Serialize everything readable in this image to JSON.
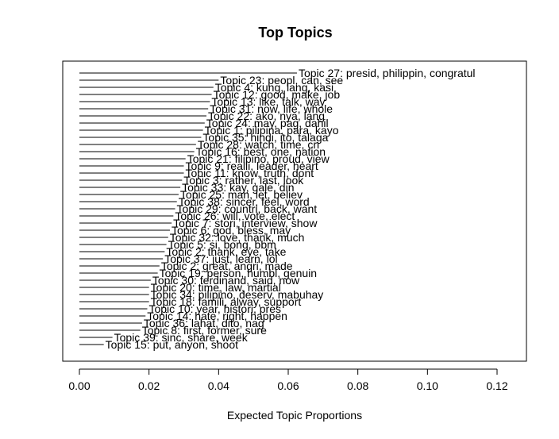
{
  "chart_data": {
    "type": "bar",
    "orientation": "horizontal",
    "title": "Top Topics",
    "xlabel": "Expected Topic Proportions",
    "xlim": [
      0,
      0.13
    ],
    "xticks": [
      0.0,
      0.02,
      0.04,
      0.06,
      0.08,
      0.1,
      0.12
    ],
    "xtick_labels": [
      "0.00",
      "0.02",
      "0.04",
      "0.06",
      "0.08",
      "0.10",
      "0.12"
    ],
    "grid": false,
    "legend": "none",
    "bars": [
      {
        "label": "Topic 27: presid, philippin, congratul",
        "value": 0.0625
      },
      {
        "label": "Topic 23: peopl, can, see",
        "value": 0.04
      },
      {
        "label": "Topic 4: kung, lang, kasi",
        "value": 0.0385
      },
      {
        "label": "Topic 12: good, make, job",
        "value": 0.038
      },
      {
        "label": "Topic 13: like, talk, way",
        "value": 0.0375
      },
      {
        "label": "Topic 31: now, life, whole",
        "value": 0.037
      },
      {
        "label": "Topic 22: ako, nya, lang",
        "value": 0.0365
      },
      {
        "label": "Topic 24: may, pag, dahil",
        "value": 0.036
      },
      {
        "label": "Topic 1: pilipina, para, kayo",
        "value": 0.0355
      },
      {
        "label": "Topic 35: hindi, ito, talaga",
        "value": 0.035
      },
      {
        "label": "Topic 28: watch, time, cri",
        "value": 0.0335
      },
      {
        "label": "Topic 16: best, one, nation",
        "value": 0.033
      },
      {
        "label": "Topic 21: filipino, proud, view",
        "value": 0.0305
      },
      {
        "label": "Topic 9: realli, leader, heart",
        "value": 0.03
      },
      {
        "label": "Topic 11: know, truth, dont",
        "value": 0.03
      },
      {
        "label": "Topic 3: rather, last, look",
        "value": 0.0295
      },
      {
        "label": "Topic 33: kay, gale, din",
        "value": 0.029
      },
      {
        "label": "Topic 25: man, let, believ",
        "value": 0.0285
      },
      {
        "label": "Topic 38: sincer, feel, word",
        "value": 0.028
      },
      {
        "label": "Topic 29: countri, back, want",
        "value": 0.0275
      },
      {
        "label": "Topic 26: will, vote, elect",
        "value": 0.027
      },
      {
        "label": "Topic 7: stori, interview, show",
        "value": 0.0265
      },
      {
        "label": "Topic 6: god, bless, may",
        "value": 0.026
      },
      {
        "label": "Topic 32: love, thank, much",
        "value": 0.0255
      },
      {
        "label": "Topic 5: si, bong, bbm",
        "value": 0.025
      },
      {
        "label": "Topic 2: thank, eye, take",
        "value": 0.0245
      },
      {
        "label": "Topic 37: just, learn, lol",
        "value": 0.024
      },
      {
        "label": "Topic 2: great, angri, made",
        "value": 0.023
      },
      {
        "label": "Topic 19: person, humbl, genuin",
        "value": 0.0225
      },
      {
        "label": "Topic 30: ferdinand, said, now",
        "value": 0.0205
      },
      {
        "label": "Topic 20: time, law, martial",
        "value": 0.02
      },
      {
        "label": "Topic 34: pilipino, deserv, mabuhay",
        "value": 0.02
      },
      {
        "label": "Topic 18: famili, alway, support",
        "value": 0.02
      },
      {
        "label": "Topic 10: year, histori, pres",
        "value": 0.0195
      },
      {
        "label": "Topic 14: hate, right, happen",
        "value": 0.019
      },
      {
        "label": "Topic 36: lahat, dito, nag",
        "value": 0.018
      },
      {
        "label": "Topic 8: first, former, sure",
        "value": 0.0175
      },
      {
        "label": "Topic 39: sinc, share, week",
        "value": 0.0095
      },
      {
        "label": "Topic 15: put, anyon, shoot",
        "value": 0.007
      }
    ]
  }
}
